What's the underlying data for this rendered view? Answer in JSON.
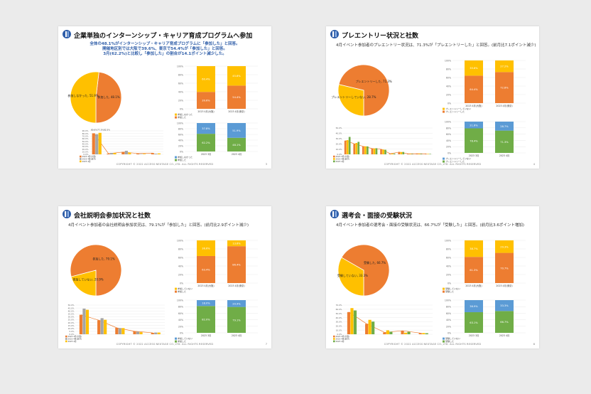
{
  "footer": "COPYRIGHT © 2022 ACCESS NEXTAGE CO.,LTD. ALL RIGHTS RESERVED",
  "colors": {
    "orange": "#ed7d31",
    "yellow": "#ffc000",
    "green": "#70ad47",
    "blue": "#5b9bd5",
    "gray": "#a5a5a5",
    "navy": "#2e5da8"
  },
  "slides": [
    {
      "title": "企業単独のインターンシップ・キャリア育成プログラムへ参加",
      "lead": [
        "全体の48.1%がインターンシップ・キャリア育成プログラムに「参加した」と回答。",
        "開催地区別では大阪で39.6%、東京で54.4%が「参加した」と回答。",
        "3月(62.2%)と比較し「参加した」の割合が14.1ポイント減少した。"
      ],
      "page": "3",
      "pie": {
        "slices": [
          {
            "label": "参加した, 48.1%",
            "value": 48.1,
            "color": "orange"
          },
          {
            "label": "参加しなかった, 51.9%",
            "value": 51.9,
            "color": "yellow"
          }
        ]
      },
      "stack_top": {
        "labels": [
          "2023 4月(大阪)",
          "2023 4月(東京)"
        ],
        "series": [
          {
            "name": "参加しなかった",
            "values": [
              60.4,
              45.6
            ],
            "color": "yellow"
          },
          {
            "name": "参加した",
            "values": [
              39.6,
              54.4
            ],
            "color": "orange"
          }
        ]
      },
      "stack_bottom": {
        "labels": [
          "2023 3月",
          "2023 4月"
        ],
        "series": [
          {
            "name": "参加しなかった",
            "values": [
              37.8,
              51.9
            ],
            "color": "blue"
          },
          {
            "name": "参加した",
            "values": [
              62.2,
              48.1
            ],
            "color": "green"
          }
        ]
      },
      "column": {
        "ymax": 90,
        "ticks": [
          "90.0%",
          "80.0%",
          "70.0%",
          "60.0%",
          "50.0%",
          "40.0%",
          "30.0%",
          "20.0%",
          "10.0%",
          "0.0%"
        ],
        "series": [
          {
            "name": "2023 4月(大阪)",
            "values": [
              80.6,
              2.8,
              8.7,
              3.2,
              4.7
            ],
            "color": "orange"
          },
          {
            "name": "2023 4月(東京)",
            "values": [
              77.3,
              5.2,
              13.6,
              1.4,
              2.5
            ],
            "color": "gray"
          },
          {
            "name": "2023 4月",
            "values": [
              82.5,
              5.0,
              7.1,
              2.0,
              3.4
            ],
            "color": "yellow"
          }
        ],
        "tops": [
          "80.6%",
          "77.3%",
          "82.5%"
        ]
      }
    },
    {
      "title": "プレエントリー状況と社数",
      "lead": [
        "4月イベント参加者のプレエントリー状況は、71.3%が「プレエントリーした」と回答。(前月比7.1ポイント減少)"
      ],
      "page": "4",
      "pie": {
        "slices": [
          {
            "label": "プレエントリーした, 71.3%",
            "value": 71.3,
            "color": "orange"
          },
          {
            "label": "プレエントリーしていない, 28.7%",
            "value": 28.7,
            "color": "yellow"
          }
        ]
      },
      "stack_top": {
        "labels": [
          "2023 4月(大阪)",
          "2023 4月(東京)"
        ],
        "series": [
          {
            "name": "プレエントリーしていない",
            "values": [
              35.6,
              27.2
            ],
            "color": "yellow"
          },
          {
            "name": "プレエントリーした",
            "values": [
              64.4,
              72.8
            ],
            "color": "orange"
          }
        ]
      },
      "stack_bottom": {
        "labels": [
          "2023 3月",
          "2023 4月"
        ],
        "series": [
          {
            "name": "プレエントリーしていない",
            "values": [
              21.6,
              28.7
            ],
            "color": "blue"
          },
          {
            "name": "プレエントリーした",
            "values": [
              78.4,
              71.3
            ],
            "color": "green"
          }
        ]
      },
      "column": {
        "ymax": 50,
        "ticks": [
          "50.0%",
          "40.0%",
          "30.0%",
          "20.0%",
          "10.0%",
          "0.0%"
        ],
        "series": [
          {
            "name": "2023 4月(大阪)",
            "values": [
              26.0,
              20.0,
              15.0,
              11.0,
              9.7,
              1.2,
              4.3,
              1.0,
              1.2,
              1.0
            ],
            "color": "orange"
          },
          {
            "name": "2023 4月(東京)",
            "values": [
              27.0,
              21.6,
              15.2,
              11.1,
              9.1,
              1.3,
              4.4,
              0.9,
              1.1,
              0.9
            ],
            "color": "yellow"
          },
          {
            "name": "2023 4月",
            "values": [
              33.1,
              23.7,
              15.1,
              11.6,
              8.7,
              1.4,
              4.5,
              0.8,
              1.0,
              0.8
            ],
            "color": "green"
          }
        ]
      }
    },
    {
      "title": "会社説明会参加状況と社数",
      "lead": [
        "4月イベント参加者の会社説明会参加状況は、79.1%が「参加した」と回答。(前月比2.9ポイント減少)"
      ],
      "page": "7",
      "pie": {
        "slices": [
          {
            "label": "参加した, 79.1%",
            "value": 79.1,
            "color": "orange"
          },
          {
            "label": "参加していない, 20.9%",
            "value": 20.9,
            "color": "yellow"
          }
        ]
      },
      "stack_top": {
        "labels": [
          "2023 4月(大阪)",
          "2023 4月(東京)"
        ],
        "series": [
          {
            "name": "参加していない",
            "values": [
              36.6,
              13.6
            ],
            "color": "yellow"
          },
          {
            "name": "参加した",
            "values": [
              63.4,
              86.4
            ],
            "color": "orange"
          }
        ]
      },
      "stack_bottom": {
        "labels": [
          "2023 3月",
          "2023 4月"
        ],
        "series": [
          {
            "name": "参加していない",
            "values": [
              18.0,
              20.9
            ],
            "color": "blue"
          },
          {
            "name": "参加した",
            "values": [
              82.0,
              79.1
            ],
            "color": "green"
          }
        ]
      },
      "column": {
        "ymax": 50,
        "ticks": [
          "50.0%",
          "45.0%",
          "40.0%",
          "35.0%",
          "30.0%",
          "25.0%",
          "20.0%",
          "15.0%",
          "10.0%",
          "5.0%",
          "0.0%"
        ],
        "series": [
          {
            "name": "2023 4月(大阪)",
            "values": [
              33.4,
              24.0,
              11.0,
              5.0,
              2.5
            ],
            "color": "orange"
          },
          {
            "name": "2023 4月(東京)",
            "values": [
              44.0,
              27.6,
              10.6,
              4.4,
              3.0
            ],
            "color": "gray"
          },
          {
            "name": "2023 4月",
            "values": [
              42.0,
              24.8,
              10.6,
              3.5,
              3.0
            ],
            "color": "yellow"
          }
        ]
      }
    },
    {
      "title": "選考会・面接の受験状況",
      "lead": [
        "4月イベント参加者の選考会・面接の受験状況は、66.7%が「受験した」と回答。(前月比3.6ポイント増加)"
      ],
      "page": "8",
      "pie": {
        "slices": [
          {
            "label": "受験した, 66.7%",
            "value": 66.7,
            "color": "orange"
          },
          {
            "label": "受験していない, 33.3%",
            "value": 33.3,
            "color": "yellow"
          }
        ]
      },
      "stack_top": {
        "labels": [
          "2023 4月(大阪)",
          "2023 4月(東京)"
        ],
        "series": [
          {
            "name": "受験していない",
            "values": [
              38.7,
              29.3
            ],
            "color": "yellow"
          },
          {
            "name": "受験した",
            "values": [
              61.3,
              70.7
            ],
            "color": "orange"
          }
        ]
      },
      "stack_bottom": {
        "labels": [
          "2023 3月",
          "2023 4月"
        ],
        "series": [
          {
            "name": "受験していない",
            "values": [
              36.9,
              33.3
            ],
            "color": "blue"
          },
          {
            "name": "受験した",
            "values": [
              63.1,
              66.7
            ],
            "color": "green"
          }
        ]
      },
      "column": {
        "ymax": 70,
        "ticks": [
          "70.0%",
          "60.0%",
          "50.0%",
          "40.0%",
          "30.0%",
          "20.0%",
          "10.0%",
          "0.0%"
        ],
        "series": [
          {
            "name": "2023 4月(大阪)",
            "values": [
              53.2,
              25.0,
              4.4,
              8.4,
              2.9
            ],
            "color": "orange"
          },
          {
            "name": "2023 4月(東京)",
            "values": [
              62.8,
              34.6,
              9.4,
              3.9,
              2.9
            ],
            "color": "yellow"
          },
          {
            "name": "2023 4月",
            "values": [
              57.2,
              30.4,
              6.1,
              6.0,
              2.5
            ],
            "color": "green"
          }
        ]
      }
    }
  ]
}
